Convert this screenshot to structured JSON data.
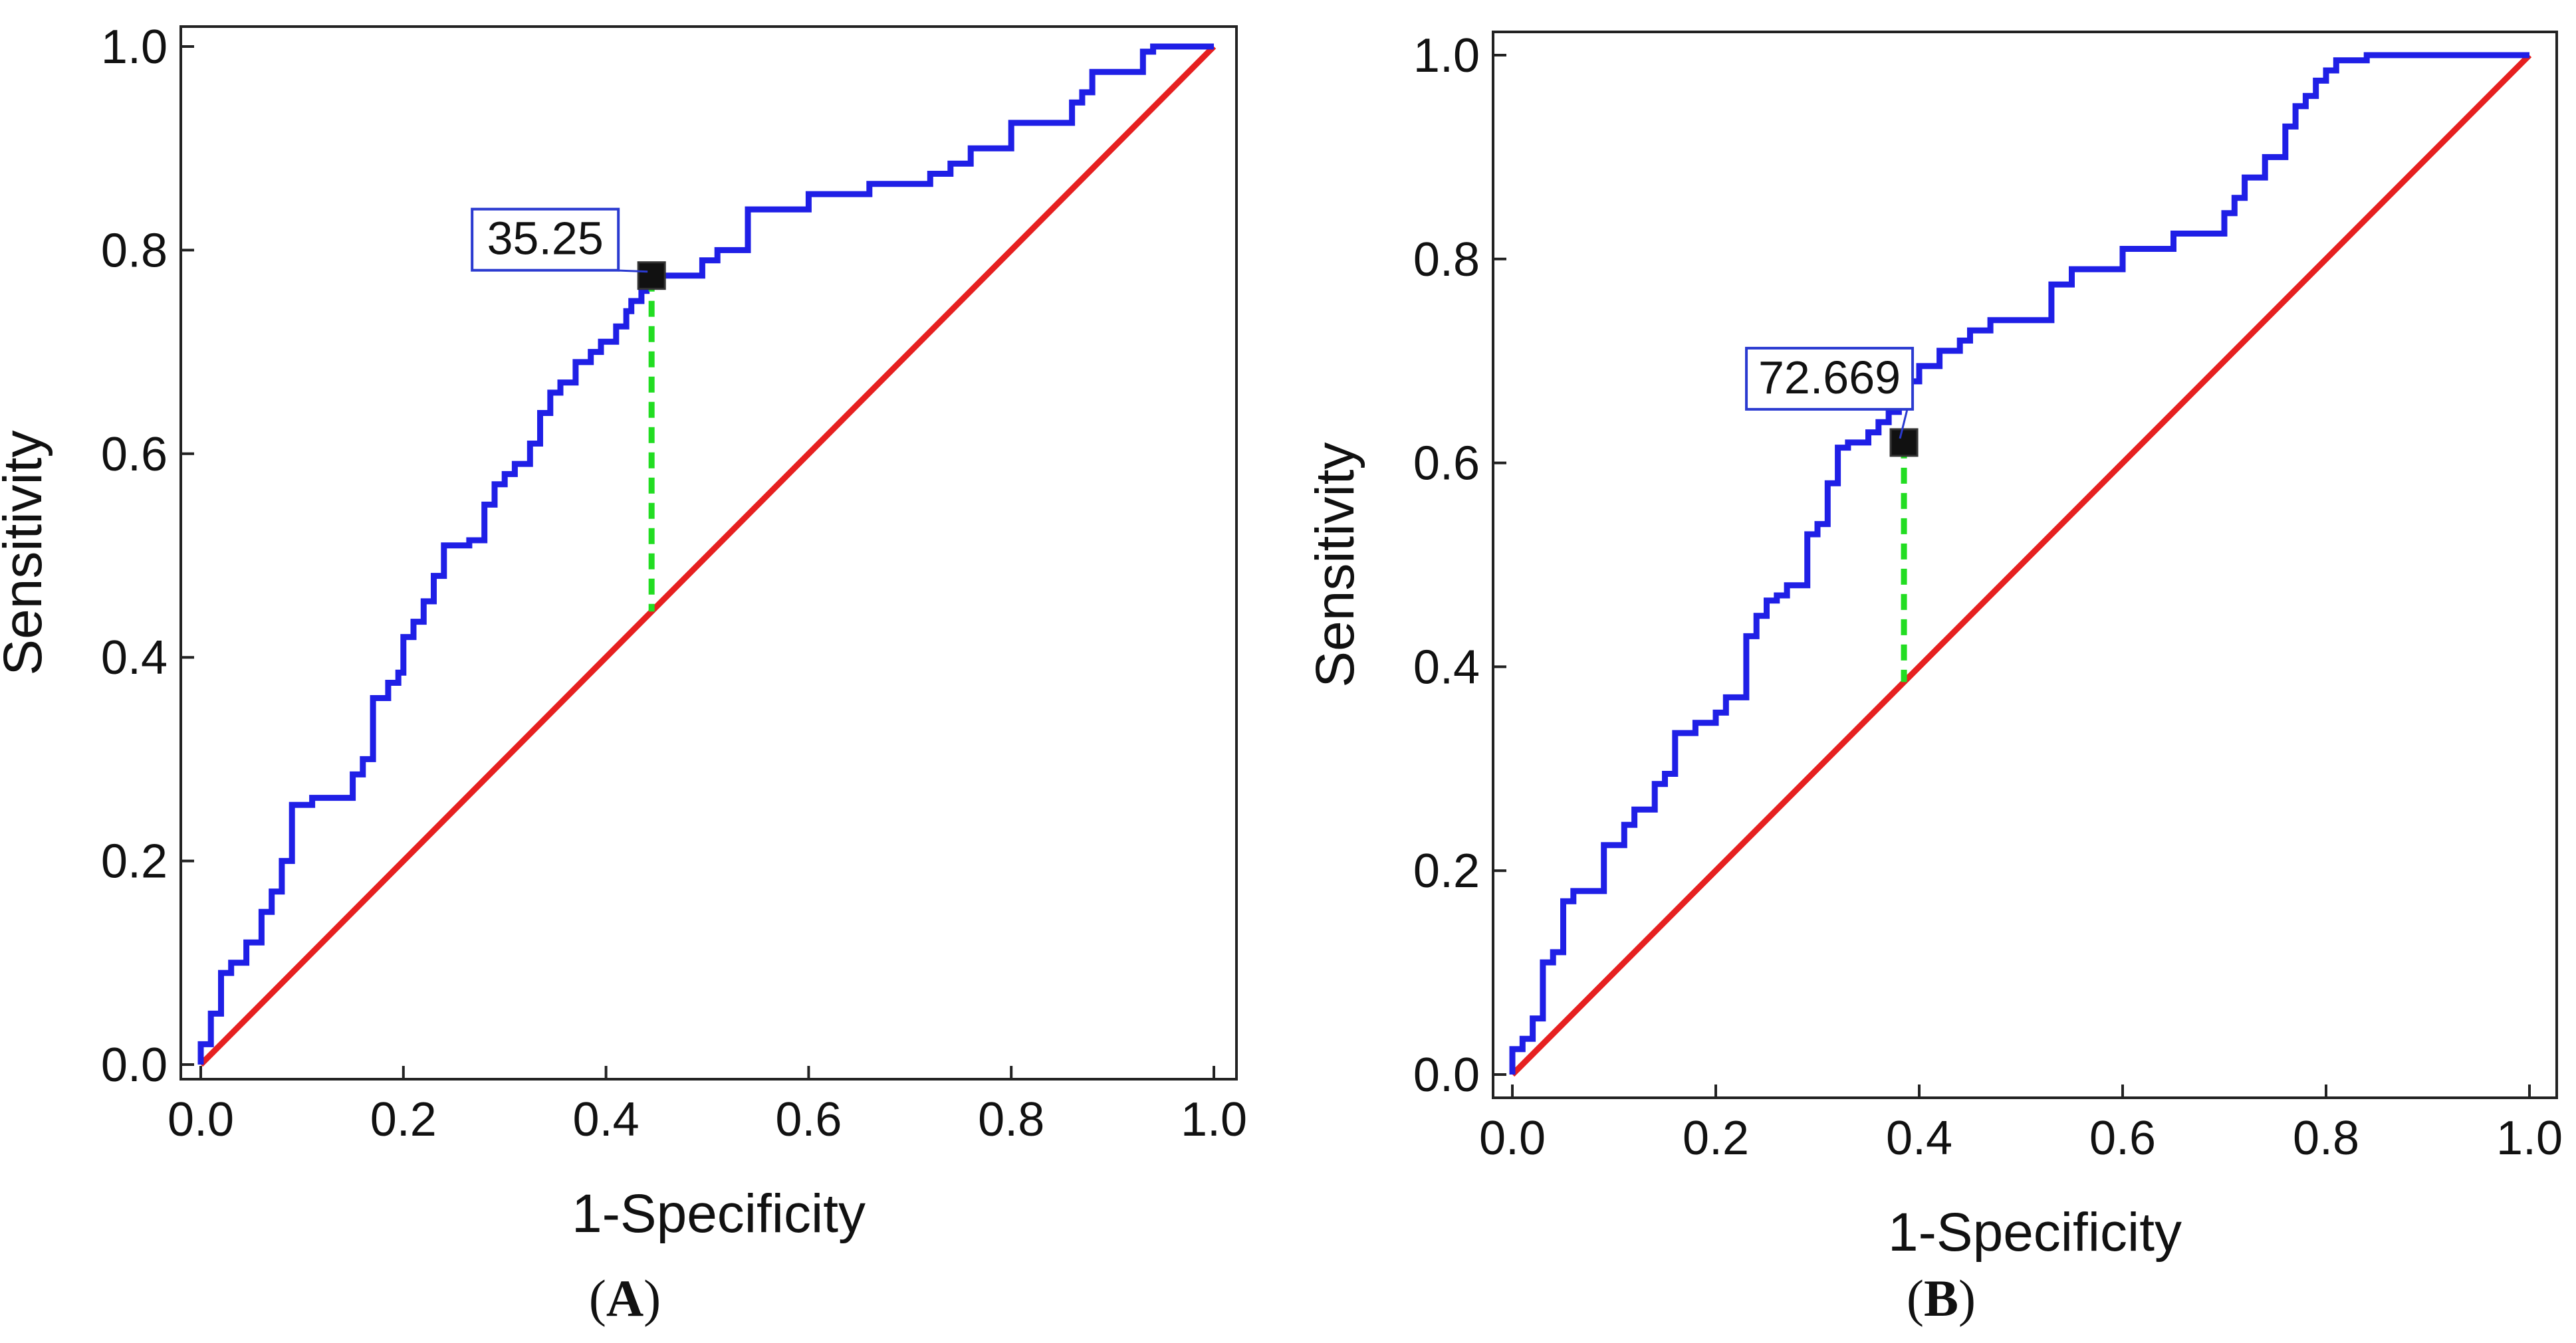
{
  "chart_data": [
    {
      "type": "line",
      "panel_label": "A",
      "title": "",
      "xlabel": "1-Specificity",
      "ylabel": "Sensitivity",
      "xlim": [
        0,
        1
      ],
      "ylim": [
        0,
        1
      ],
      "xticks": [
        "0.0",
        "0.2",
        "0.4",
        "0.6",
        "0.8",
        "1.0"
      ],
      "yticks": [
        "0.0",
        "0.2",
        "0.4",
        "0.6",
        "0.8",
        "1.0"
      ],
      "colors": {
        "roc": "#1f1fe6",
        "reference": "#e62020",
        "cutoff_line": "#22dd22",
        "marker": "#111111"
      },
      "series": [
        {
          "name": "ROC curve",
          "x": [
            0.0,
            0.0,
            0.01,
            0.01,
            0.02,
            0.02,
            0.03,
            0.03,
            0.045,
            0.045,
            0.06,
            0.06,
            0.07,
            0.07,
            0.08,
            0.08,
            0.09,
            0.09,
            0.11,
            0.11,
            0.15,
            0.15,
            0.16,
            0.16,
            0.17,
            0.17,
            0.185,
            0.185,
            0.195,
            0.195,
            0.2,
            0.2,
            0.21,
            0.21,
            0.22,
            0.22,
            0.23,
            0.23,
            0.24,
            0.24,
            0.265,
            0.265,
            0.28,
            0.28,
            0.29,
            0.29,
            0.3,
            0.3,
            0.31,
            0.31,
            0.325,
            0.325,
            0.335,
            0.335,
            0.345,
            0.345,
            0.355,
            0.355,
            0.37,
            0.37,
            0.385,
            0.385,
            0.395,
            0.395,
            0.41,
            0.41,
            0.42,
            0.42,
            0.425,
            0.425,
            0.435,
            0.435,
            0.44,
            0.44,
            0.445,
            0.445,
            0.495,
            0.495,
            0.51,
            0.51,
            0.54,
            0.54,
            0.6,
            0.6,
            0.66,
            0.66,
            0.72,
            0.72,
            0.74,
            0.74,
            0.76,
            0.76,
            0.8,
            0.8,
            0.86,
            0.86,
            0.87,
            0.87,
            0.88,
            0.88,
            0.93,
            0.93,
            0.94,
            0.94,
            0.97,
            0.97,
            1.0
          ],
          "y": [
            0.0,
            0.02,
            0.02,
            0.05,
            0.05,
            0.09,
            0.09,
            0.1,
            0.1,
            0.12,
            0.12,
            0.15,
            0.15,
            0.17,
            0.17,
            0.2,
            0.2,
            0.255,
            0.255,
            0.262,
            0.262,
            0.285,
            0.285,
            0.3,
            0.3,
            0.36,
            0.36,
            0.375,
            0.375,
            0.385,
            0.385,
            0.42,
            0.42,
            0.435,
            0.435,
            0.455,
            0.455,
            0.48,
            0.48,
            0.51,
            0.51,
            0.515,
            0.515,
            0.55,
            0.55,
            0.57,
            0.57,
            0.58,
            0.58,
            0.59,
            0.59,
            0.61,
            0.61,
            0.64,
            0.64,
            0.66,
            0.66,
            0.67,
            0.67,
            0.69,
            0.69,
            0.7,
            0.7,
            0.71,
            0.71,
            0.725,
            0.725,
            0.74,
            0.74,
            0.75,
            0.75,
            0.76,
            0.76,
            0.775,
            0.775,
            0.775,
            0.775,
            0.79,
            0.79,
            0.8,
            0.8,
            0.84,
            0.84,
            0.855,
            0.855,
            0.865,
            0.865,
            0.875,
            0.875,
            0.885,
            0.885,
            0.9,
            0.9,
            0.925,
            0.925,
            0.945,
            0.945,
            0.955,
            0.955,
            0.975,
            0.975,
            0.995,
            0.995,
            1.0,
            1.0,
            1.0,
            1.0
          ]
        },
        {
          "name": "Reference line",
          "x": [
            0,
            1
          ],
          "y": [
            0,
            1
          ]
        }
      ],
      "cutoff": {
        "label": "35.25",
        "x": 0.445,
        "y": 0.775,
        "reference_y": 0.445
      }
    },
    {
      "type": "line",
      "panel_label": "B",
      "title": "",
      "xlabel": "1-Specificity",
      "ylabel": "Sensitivity",
      "xlim": [
        0,
        1
      ],
      "ylim": [
        0,
        1
      ],
      "xticks": [
        "0.0",
        "0.2",
        "0.4",
        "0.6",
        "0.8",
        "1.0"
      ],
      "yticks": [
        "0.0",
        "0.2",
        "0.4",
        "0.6",
        "0.8",
        "1.0"
      ],
      "colors": {
        "roc": "#1f1fe6",
        "reference": "#e62020",
        "cutoff_line": "#22dd22",
        "marker": "#111111"
      },
      "series": [
        {
          "name": "ROC curve",
          "x": [
            0.0,
            0.0,
            0.01,
            0.01,
            0.02,
            0.02,
            0.03,
            0.03,
            0.04,
            0.04,
            0.05,
            0.05,
            0.06,
            0.06,
            0.07,
            0.07,
            0.09,
            0.09,
            0.11,
            0.11,
            0.12,
            0.12,
            0.14,
            0.14,
            0.15,
            0.15,
            0.16,
            0.16,
            0.18,
            0.18,
            0.19,
            0.19,
            0.2,
            0.2,
            0.21,
            0.21,
            0.23,
            0.23,
            0.24,
            0.24,
            0.25,
            0.25,
            0.26,
            0.26,
            0.27,
            0.27,
            0.29,
            0.29,
            0.3,
            0.3,
            0.31,
            0.31,
            0.32,
            0.32,
            0.33,
            0.33,
            0.35,
            0.35,
            0.36,
            0.36,
            0.37,
            0.37,
            0.38,
            0.38,
            0.39,
            0.39,
            0.4,
            0.4,
            0.41,
            0.41,
            0.42,
            0.42,
            0.44,
            0.44,
            0.45,
            0.45,
            0.47,
            0.47,
            0.53,
            0.53,
            0.55,
            0.55,
            0.6,
            0.6,
            0.65,
            0.65,
            0.7,
            0.7,
            0.71,
            0.71,
            0.72,
            0.72,
            0.74,
            0.74,
            0.76,
            0.76,
            0.77,
            0.77,
            0.78,
            0.78,
            0.79,
            0.79,
            0.8,
            0.8,
            0.81,
            0.81,
            0.84,
            0.84,
            0.85,
            0.85,
            0.86,
            0.86,
            0.88,
            0.88,
            0.89,
            0.89,
            0.9,
            0.9,
            0.92,
            0.92,
            1.0
          ],
          "y": [
            0.0,
            0.025,
            0.025,
            0.035,
            0.035,
            0.055,
            0.055,
            0.11,
            0.11,
            0.12,
            0.12,
            0.17,
            0.17,
            0.18,
            0.18,
            0.18,
            0.18,
            0.225,
            0.225,
            0.245,
            0.245,
            0.26,
            0.26,
            0.285,
            0.285,
            0.295,
            0.295,
            0.335,
            0.335,
            0.345,
            0.345,
            0.345,
            0.345,
            0.355,
            0.355,
            0.37,
            0.37,
            0.43,
            0.43,
            0.45,
            0.45,
            0.465,
            0.465,
            0.47,
            0.47,
            0.48,
            0.48,
            0.53,
            0.53,
            0.54,
            0.54,
            0.58,
            0.58,
            0.615,
            0.615,
            0.62,
            0.62,
            0.63,
            0.63,
            0.64,
            0.64,
            0.65,
            0.65,
            0.665,
            0.665,
            0.68,
            0.68,
            0.695,
            0.695,
            0.695,
            0.695,
            0.71,
            0.71,
            0.72,
            0.72,
            0.73,
            0.73,
            0.74,
            0.74,
            0.775,
            0.775,
            0.79,
            0.79,
            0.81,
            0.81,
            0.825,
            0.825,
            0.845,
            0.845,
            0.86,
            0.86,
            0.88,
            0.88,
            0.9,
            0.9,
            0.93,
            0.93,
            0.95,
            0.95,
            0.96,
            0.96,
            0.975,
            0.975,
            0.985,
            0.985,
            0.995,
            0.995,
            1.0,
            1.0,
            1.0,
            1.0,
            1.0,
            1.0,
            1.0,
            1.0,
            1.0,
            1.0,
            1.0,
            1.0,
            1.0,
            1.0
          ]
        },
        {
          "name": "Reference line",
          "x": [
            0,
            1
          ],
          "y": [
            0,
            1
          ]
        }
      ],
      "cutoff": {
        "label": "72.669",
        "x": 0.385,
        "y": 0.62,
        "reference_y": 0.385
      }
    }
  ]
}
